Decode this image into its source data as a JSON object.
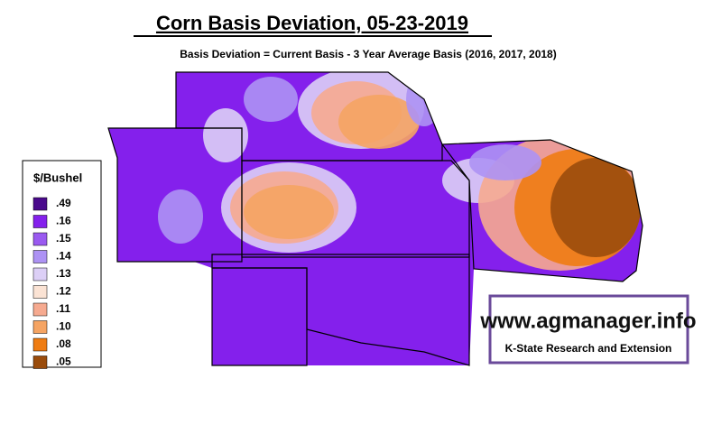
{
  "title": "Corn Basis Deviation, 05-23-2019",
  "subtitle": "Basis Deviation = Current Basis - 3 Year Average Basis (2016, 2017, 2018)",
  "legend": {
    "title": "$/Bushel",
    "items": [
      {
        "label": ".49",
        "color": "#4a0a8c"
      },
      {
        "label": ".16",
        "color": "#8420ec"
      },
      {
        "label": ".15",
        "color": "#9a5af0"
      },
      {
        "label": ".14",
        "color": "#ad92f4"
      },
      {
        "label": ".13",
        "color": "#dccff6"
      },
      {
        "label": ".12",
        "color": "#fbe3d4"
      },
      {
        "label": ".11",
        "color": "#f6aa90"
      },
      {
        "label": ".10",
        "color": "#f5a463"
      },
      {
        "label": ".08",
        "color": "#ef7c12"
      },
      {
        "label": ".05",
        "color": "#9a4c0c"
      }
    ]
  },
  "watermark": {
    "url": "www.agmanager.info",
    "org": "K-State Research and Extension"
  }
}
